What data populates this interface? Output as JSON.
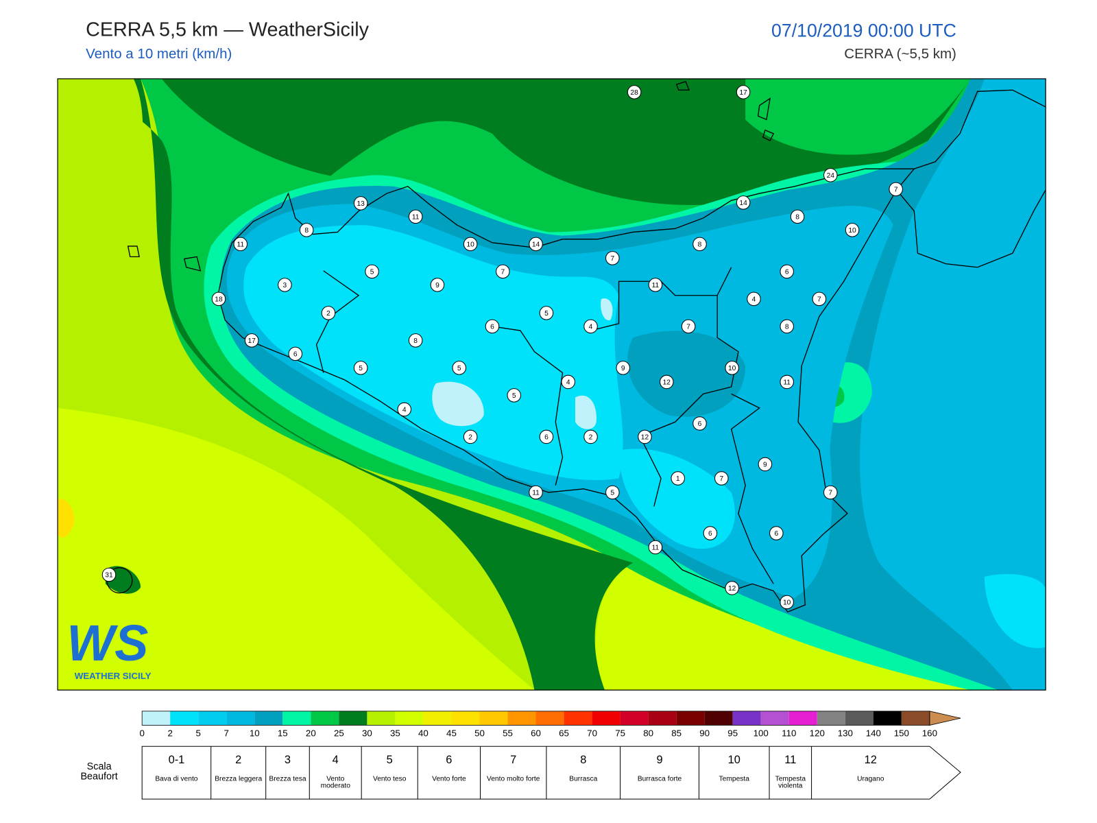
{
  "header": {
    "title": "CERRA 5,5 km — WeatherSicily",
    "subtitle": "Vento a 10 metri (km/h)",
    "datetime": "07/10/2019 00:00 UTC",
    "model": "CERRA (~5,5 km)"
  },
  "stations": [
    28,
    17,
    24,
    7,
    13,
    11,
    14,
    8,
    10,
    8,
    11,
    10,
    14,
    8,
    7,
    5,
    7,
    6,
    3,
    9,
    11,
    4,
    7,
    18,
    2,
    5,
    6,
    4,
    7,
    8,
    17,
    8,
    6,
    5,
    5,
    9,
    10,
    12,
    11,
    4,
    5,
    4,
    6,
    2,
    6,
    2,
    12,
    9,
    1,
    7,
    11,
    5,
    7,
    11,
    6,
    6,
    12,
    10,
    31
  ],
  "colorbar": {
    "ticks": [
      0,
      2,
      5,
      7,
      10,
      15,
      20,
      25,
      30,
      35,
      40,
      45,
      50,
      55,
      60,
      65,
      70,
      75,
      80,
      85,
      90,
      95,
      100,
      110,
      120,
      130,
      140,
      150,
      160
    ],
    "colors": [
      "#bff2fb",
      "#00e1fa",
      "#00cdf0",
      "#00b9e1",
      "#00a0be",
      "#00f5a5",
      "#00c846",
      "#007d1e",
      "#b4f000",
      "#d2ff00",
      "#f0f000",
      "#ffe100",
      "#ffc800",
      "#ff9600",
      "#ff6e00",
      "#ff3200",
      "#f00000",
      "#d20028",
      "#aa0014",
      "#780000",
      "#500000",
      "#7832c8",
      "#b450d2",
      "#e61ed2",
      "#828282",
      "#5a5a5a",
      "#000000",
      "#8b4b28",
      "#cd8c50"
    ]
  },
  "beaufort": {
    "title": "Scala Beaufort",
    "levels": [
      {
        "force": "0-1",
        "label": "Bava di vento"
      },
      {
        "force": "2",
        "label": "Brezza leggera"
      },
      {
        "force": "3",
        "label": "Brezza tesa"
      },
      {
        "force": "4",
        "label": "Vento moderato"
      },
      {
        "force": "5",
        "label": "Vento teso"
      },
      {
        "force": "6",
        "label": "Vento forte"
      },
      {
        "force": "7",
        "label": "Vento molto forte"
      },
      {
        "force": "8",
        "label": "Burrasca"
      },
      {
        "force": "9",
        "label": "Burrasca forte"
      },
      {
        "force": "10",
        "label": "Tempesta"
      },
      {
        "force": "11",
        "label": "Tempesta violenta"
      },
      {
        "force": "12",
        "label": "Uragano"
      }
    ]
  },
  "logo": {
    "letters": "WS",
    "name": "WEATHER SICILY"
  }
}
